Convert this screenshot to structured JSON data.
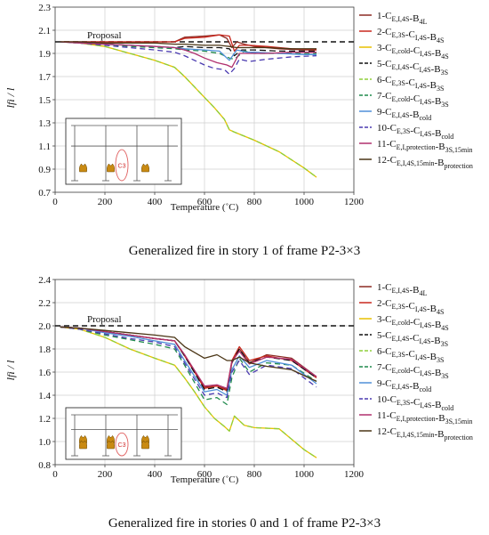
{
  "chart_data": [
    {
      "type": "line",
      "caption": "Generalized fire in story 1 of frame P2-3×3",
      "xlabel": "Temperature (˚C)",
      "ylabel": "lfi / l",
      "xlim": [
        0,
        1200
      ],
      "ylim": [
        0.7,
        2.3
      ],
      "xticks": [
        0,
        200,
        400,
        600,
        800,
        1000,
        1200
      ],
      "yticks": [
        0.7,
        0.9,
        1.1,
        1.3,
        1.5,
        1.7,
        1.9,
        2.1,
        2.3
      ],
      "grid": true,
      "legend_position": "right",
      "reference_line": {
        "label": "Proposal",
        "y": 2.0
      },
      "inset": {
        "label": "C3"
      },
      "series": [
        {
          "name": "1-CE,I,4S-B4L",
          "color": "#8c2a22",
          "dash": "",
          "x": [
            20,
            100,
            200,
            300,
            400,
            480,
            520,
            600,
            660,
            690,
            710,
            730,
            760,
            800,
            900,
            1000,
            1050
          ],
          "y": [
            2.0,
            2.0,
            2.0,
            2.0,
            2.0,
            2.0,
            2.04,
            2.05,
            2.06,
            2.03,
            1.95,
            2.0,
            1.98,
            1.96,
            1.94,
            1.93,
            1.93
          ]
        },
        {
          "name": "2-CE,3S-CI,4S-B4S",
          "color": "#c8281e",
          "dash": "",
          "x": [
            20,
            100,
            200,
            300,
            400,
            480,
            520,
            600,
            660,
            700,
            720,
            740,
            780,
            850,
            950,
            1050
          ],
          "y": [
            2.0,
            2.0,
            2.0,
            2.0,
            2.0,
            2.0,
            2.03,
            2.04,
            2.06,
            2.05,
            1.92,
            1.97,
            1.97,
            1.96,
            1.94,
            1.93
          ]
        },
        {
          "name": "3-CE,cold-CI,4S-B4S",
          "color": "#e8c000",
          "dash": "",
          "x": [
            20,
            100,
            200,
            300,
            400,
            480,
            520,
            560,
            600,
            640,
            680,
            700,
            720,
            800,
            900,
            1000,
            1050
          ],
          "y": [
            2.0,
            1.99,
            1.96,
            1.9,
            1.84,
            1.78,
            1.7,
            1.61,
            1.52,
            1.43,
            1.33,
            1.24,
            1.22,
            1.15,
            1.05,
            0.91,
            0.83
          ]
        },
        {
          "name": "5-CE,I,4S-CI,4S-B3S",
          "color": "#111111",
          "dash": "7,4",
          "x": [
            20,
            100,
            200,
            300,
            400,
            480,
            520,
            600,
            660,
            700,
            720,
            750,
            800,
            900,
            1000,
            1050
          ],
          "y": [
            2.0,
            1.99,
            1.98,
            1.97,
            1.96,
            1.95,
            1.96,
            1.95,
            1.95,
            1.94,
            1.88,
            1.93,
            1.93,
            1.92,
            1.92,
            1.92
          ]
        },
        {
          "name": "6-CE,3S-CI,4S-B3S",
          "color": "#8fcf3a",
          "dash": "6,4",
          "x": [
            20,
            100,
            200,
            300,
            400,
            480,
            520,
            560,
            600,
            640,
            680,
            700,
            720,
            800,
            900,
            1000,
            1050
          ],
          "y": [
            2.0,
            1.99,
            1.96,
            1.9,
            1.84,
            1.78,
            1.7,
            1.61,
            1.52,
            1.43,
            1.33,
            1.24,
            1.22,
            1.15,
            1.05,
            0.91,
            0.83
          ]
        },
        {
          "name": "7-CE,cold-CI,4S-B3S",
          "color": "#1f8a4c",
          "dash": "6,4",
          "x": [
            20,
            100,
            200,
            300,
            400,
            480,
            520,
            600,
            660,
            700,
            720,
            760,
            800,
            900,
            1000,
            1050
          ],
          "y": [
            2.0,
            1.99,
            1.98,
            1.96,
            1.95,
            1.94,
            1.93,
            1.92,
            1.9,
            1.86,
            1.85,
            1.92,
            1.9,
            1.9,
            1.9,
            1.9
          ]
        },
        {
          "name": "9-CE,I,4S-Bcold",
          "color": "#4f8fd8",
          "dash": "",
          "x": [
            20,
            100,
            200,
            300,
            400,
            480,
            520,
            600,
            660,
            700,
            730,
            770,
            800,
            900,
            1000,
            1050
          ],
          "y": [
            2.0,
            1.99,
            1.98,
            1.97,
            1.96,
            1.95,
            1.94,
            1.93,
            1.92,
            1.84,
            1.93,
            1.91,
            1.91,
            1.9,
            1.89,
            1.89
          ]
        },
        {
          "name": "10-CE,3S-CI,4S-Bcold",
          "color": "#4a3ab0",
          "dash": "6,4",
          "x": [
            20,
            100,
            200,
            300,
            400,
            480,
            520,
            560,
            600,
            640,
            680,
            700,
            720,
            740,
            780,
            850,
            950,
            1050
          ],
          "y": [
            2.0,
            1.99,
            1.97,
            1.95,
            1.93,
            1.91,
            1.88,
            1.84,
            1.8,
            1.77,
            1.76,
            1.72,
            1.77,
            1.85,
            1.83,
            1.85,
            1.87,
            1.88
          ]
        },
        {
          "name": "11-CE,I,protection-B3S,15min",
          "color": "#b0306e",
          "dash": "",
          "x": [
            20,
            100,
            200,
            300,
            400,
            480,
            520,
            560,
            600,
            650,
            690,
            710,
            740,
            780,
            850,
            950,
            1050
          ],
          "y": [
            2.0,
            1.99,
            1.98,
            1.97,
            1.96,
            1.95,
            1.93,
            1.9,
            1.86,
            1.82,
            1.8,
            1.78,
            1.9,
            1.9,
            1.9,
            1.91,
            1.91
          ]
        },
        {
          "name": "12-CE,I,4S,15min-Bprotection",
          "color": "#4a3515",
          "dash": "",
          "x": [
            20,
            100,
            200,
            300,
            400,
            480,
            520,
            600,
            660,
            700,
            730,
            780,
            850,
            950,
            1050
          ],
          "y": [
            2.0,
            2.0,
            1.99,
            1.99,
            1.99,
            1.98,
            1.98,
            1.97,
            1.97,
            1.96,
            1.95,
            1.95,
            1.95,
            1.94,
            1.94
          ]
        }
      ]
    },
    {
      "type": "line",
      "caption": "Generalized fire in stories 0 and 1 of frame P2-3×3",
      "xlabel": "Temperature (˚C)",
      "ylabel": "lfi / l",
      "xlim": [
        0,
        1200
      ],
      "ylim": [
        0.8,
        2.4
      ],
      "xticks": [
        0,
        200,
        400,
        600,
        800,
        1000,
        1200
      ],
      "yticks": [
        0.8,
        1.0,
        1.2,
        1.4,
        1.6,
        1.8,
        2.0,
        2.2,
        2.4
      ],
      "grid": true,
      "legend_position": "right",
      "reference_line": {
        "label": "Proposal",
        "y": 2.0
      },
      "inset": {
        "label": "C3"
      },
      "series": [
        {
          "name": "1-CE,I,4S-B4L",
          "color": "#8c2a22",
          "dash": "",
          "x": [
            20,
            100,
            200,
            300,
            400,
            480,
            520,
            600,
            650,
            690,
            710,
            740,
            780,
            850,
            950,
            1050
          ],
          "y": [
            1.99,
            1.98,
            1.95,
            1.92,
            1.89,
            1.87,
            1.75,
            1.47,
            1.48,
            1.45,
            1.68,
            1.8,
            1.68,
            1.75,
            1.72,
            1.56
          ]
        },
        {
          "name": "2-CE,3S-CI,4S-B4S",
          "color": "#c8281e",
          "dash": "",
          "x": [
            20,
            100,
            200,
            300,
            400,
            480,
            520,
            600,
            650,
            690,
            710,
            740,
            780,
            850,
            950,
            1050
          ],
          "y": [
            1.99,
            1.98,
            1.95,
            1.92,
            1.89,
            1.87,
            1.74,
            1.46,
            1.48,
            1.44,
            1.7,
            1.82,
            1.7,
            1.74,
            1.7,
            1.55
          ]
        },
        {
          "name": "3-CE,cold-CI,4S-B4S",
          "color": "#e8c000",
          "dash": "",
          "x": [
            20,
            100,
            200,
            300,
            400,
            480,
            520,
            560,
            600,
            640,
            680,
            700,
            720,
            760,
            800,
            900,
            1000,
            1050
          ],
          "y": [
            1.99,
            1.97,
            1.9,
            1.8,
            1.72,
            1.66,
            1.55,
            1.43,
            1.3,
            1.2,
            1.13,
            1.09,
            1.22,
            1.14,
            1.12,
            1.11,
            0.93,
            0.86
          ]
        },
        {
          "name": "5-CE,I,4S-CI,4S-B3S",
          "color": "#111111",
          "dash": "7,4",
          "x": [
            20,
            100,
            200,
            300,
            400,
            480,
            520,
            600,
            650,
            690,
            710,
            740,
            780,
            850,
            950,
            1050
          ],
          "y": [
            1.99,
            1.98,
            1.95,
            1.92,
            1.89,
            1.87,
            1.74,
            1.45,
            1.47,
            1.43,
            1.68,
            1.8,
            1.68,
            1.73,
            1.7,
            1.55
          ]
        },
        {
          "name": "6-CE,3S-CI,4S-B3S",
          "color": "#8fcf3a",
          "dash": "6,4",
          "x": [
            20,
            100,
            200,
            300,
            400,
            480,
            520,
            560,
            600,
            640,
            680,
            700,
            720,
            760,
            800,
            900,
            1000,
            1050
          ],
          "y": [
            1.99,
            1.97,
            1.9,
            1.8,
            1.72,
            1.66,
            1.55,
            1.43,
            1.3,
            1.2,
            1.13,
            1.09,
            1.22,
            1.14,
            1.12,
            1.11,
            0.93,
            0.86
          ]
        },
        {
          "name": "7-CE,cold-CI,4S-B3S",
          "color": "#1f8a4c",
          "dash": "6,4",
          "x": [
            20,
            100,
            200,
            300,
            400,
            480,
            520,
            600,
            650,
            690,
            710,
            740,
            780,
            850,
            950,
            1050
          ],
          "y": [
            1.99,
            1.97,
            1.92,
            1.88,
            1.84,
            1.8,
            1.66,
            1.36,
            1.38,
            1.32,
            1.55,
            1.72,
            1.6,
            1.68,
            1.66,
            1.52
          ]
        },
        {
          "name": "9-CE,I,4S-Bcold",
          "color": "#4f8fd8",
          "dash": "",
          "x": [
            20,
            100,
            200,
            300,
            400,
            480,
            520,
            600,
            650,
            690,
            710,
            740,
            780,
            850,
            950,
            1050
          ],
          "y": [
            1.99,
            1.98,
            1.94,
            1.91,
            1.87,
            1.84,
            1.7,
            1.43,
            1.45,
            1.4,
            1.62,
            1.74,
            1.64,
            1.7,
            1.66,
            1.5
          ]
        },
        {
          "name": "10-CE,3S-CI,4S-Bcold",
          "color": "#4a3ab0",
          "dash": "6,4",
          "x": [
            20,
            100,
            200,
            300,
            400,
            480,
            520,
            600,
            650,
            690,
            710,
            740,
            780,
            850,
            950,
            1050
          ],
          "y": [
            1.99,
            1.97,
            1.93,
            1.89,
            1.86,
            1.82,
            1.68,
            1.4,
            1.42,
            1.38,
            1.6,
            1.7,
            1.58,
            1.66,
            1.63,
            1.47
          ]
        },
        {
          "name": "11-CE,I,protection-B3S,15min",
          "color": "#b0306e",
          "dash": "",
          "x": [
            20,
            100,
            200,
            300,
            400,
            480,
            520,
            600,
            650,
            690,
            710,
            740,
            780,
            850,
            950,
            1050
          ],
          "y": [
            1.99,
            1.98,
            1.95,
            1.92,
            1.89,
            1.87,
            1.75,
            1.48,
            1.49,
            1.46,
            1.69,
            1.78,
            1.67,
            1.73,
            1.71,
            1.56
          ]
        },
        {
          "name": "12-CE,I,4S,15min-Bprotection",
          "color": "#4a3515",
          "dash": "",
          "x": [
            20,
            100,
            200,
            300,
            400,
            480,
            520,
            600,
            650,
            690,
            710,
            740,
            780,
            850,
            950,
            1050
          ],
          "y": [
            1.99,
            1.98,
            1.96,
            1.94,
            1.92,
            1.9,
            1.82,
            1.72,
            1.75,
            1.7,
            1.7,
            1.73,
            1.68,
            1.65,
            1.62,
            1.52
          ]
        }
      ]
    }
  ]
}
